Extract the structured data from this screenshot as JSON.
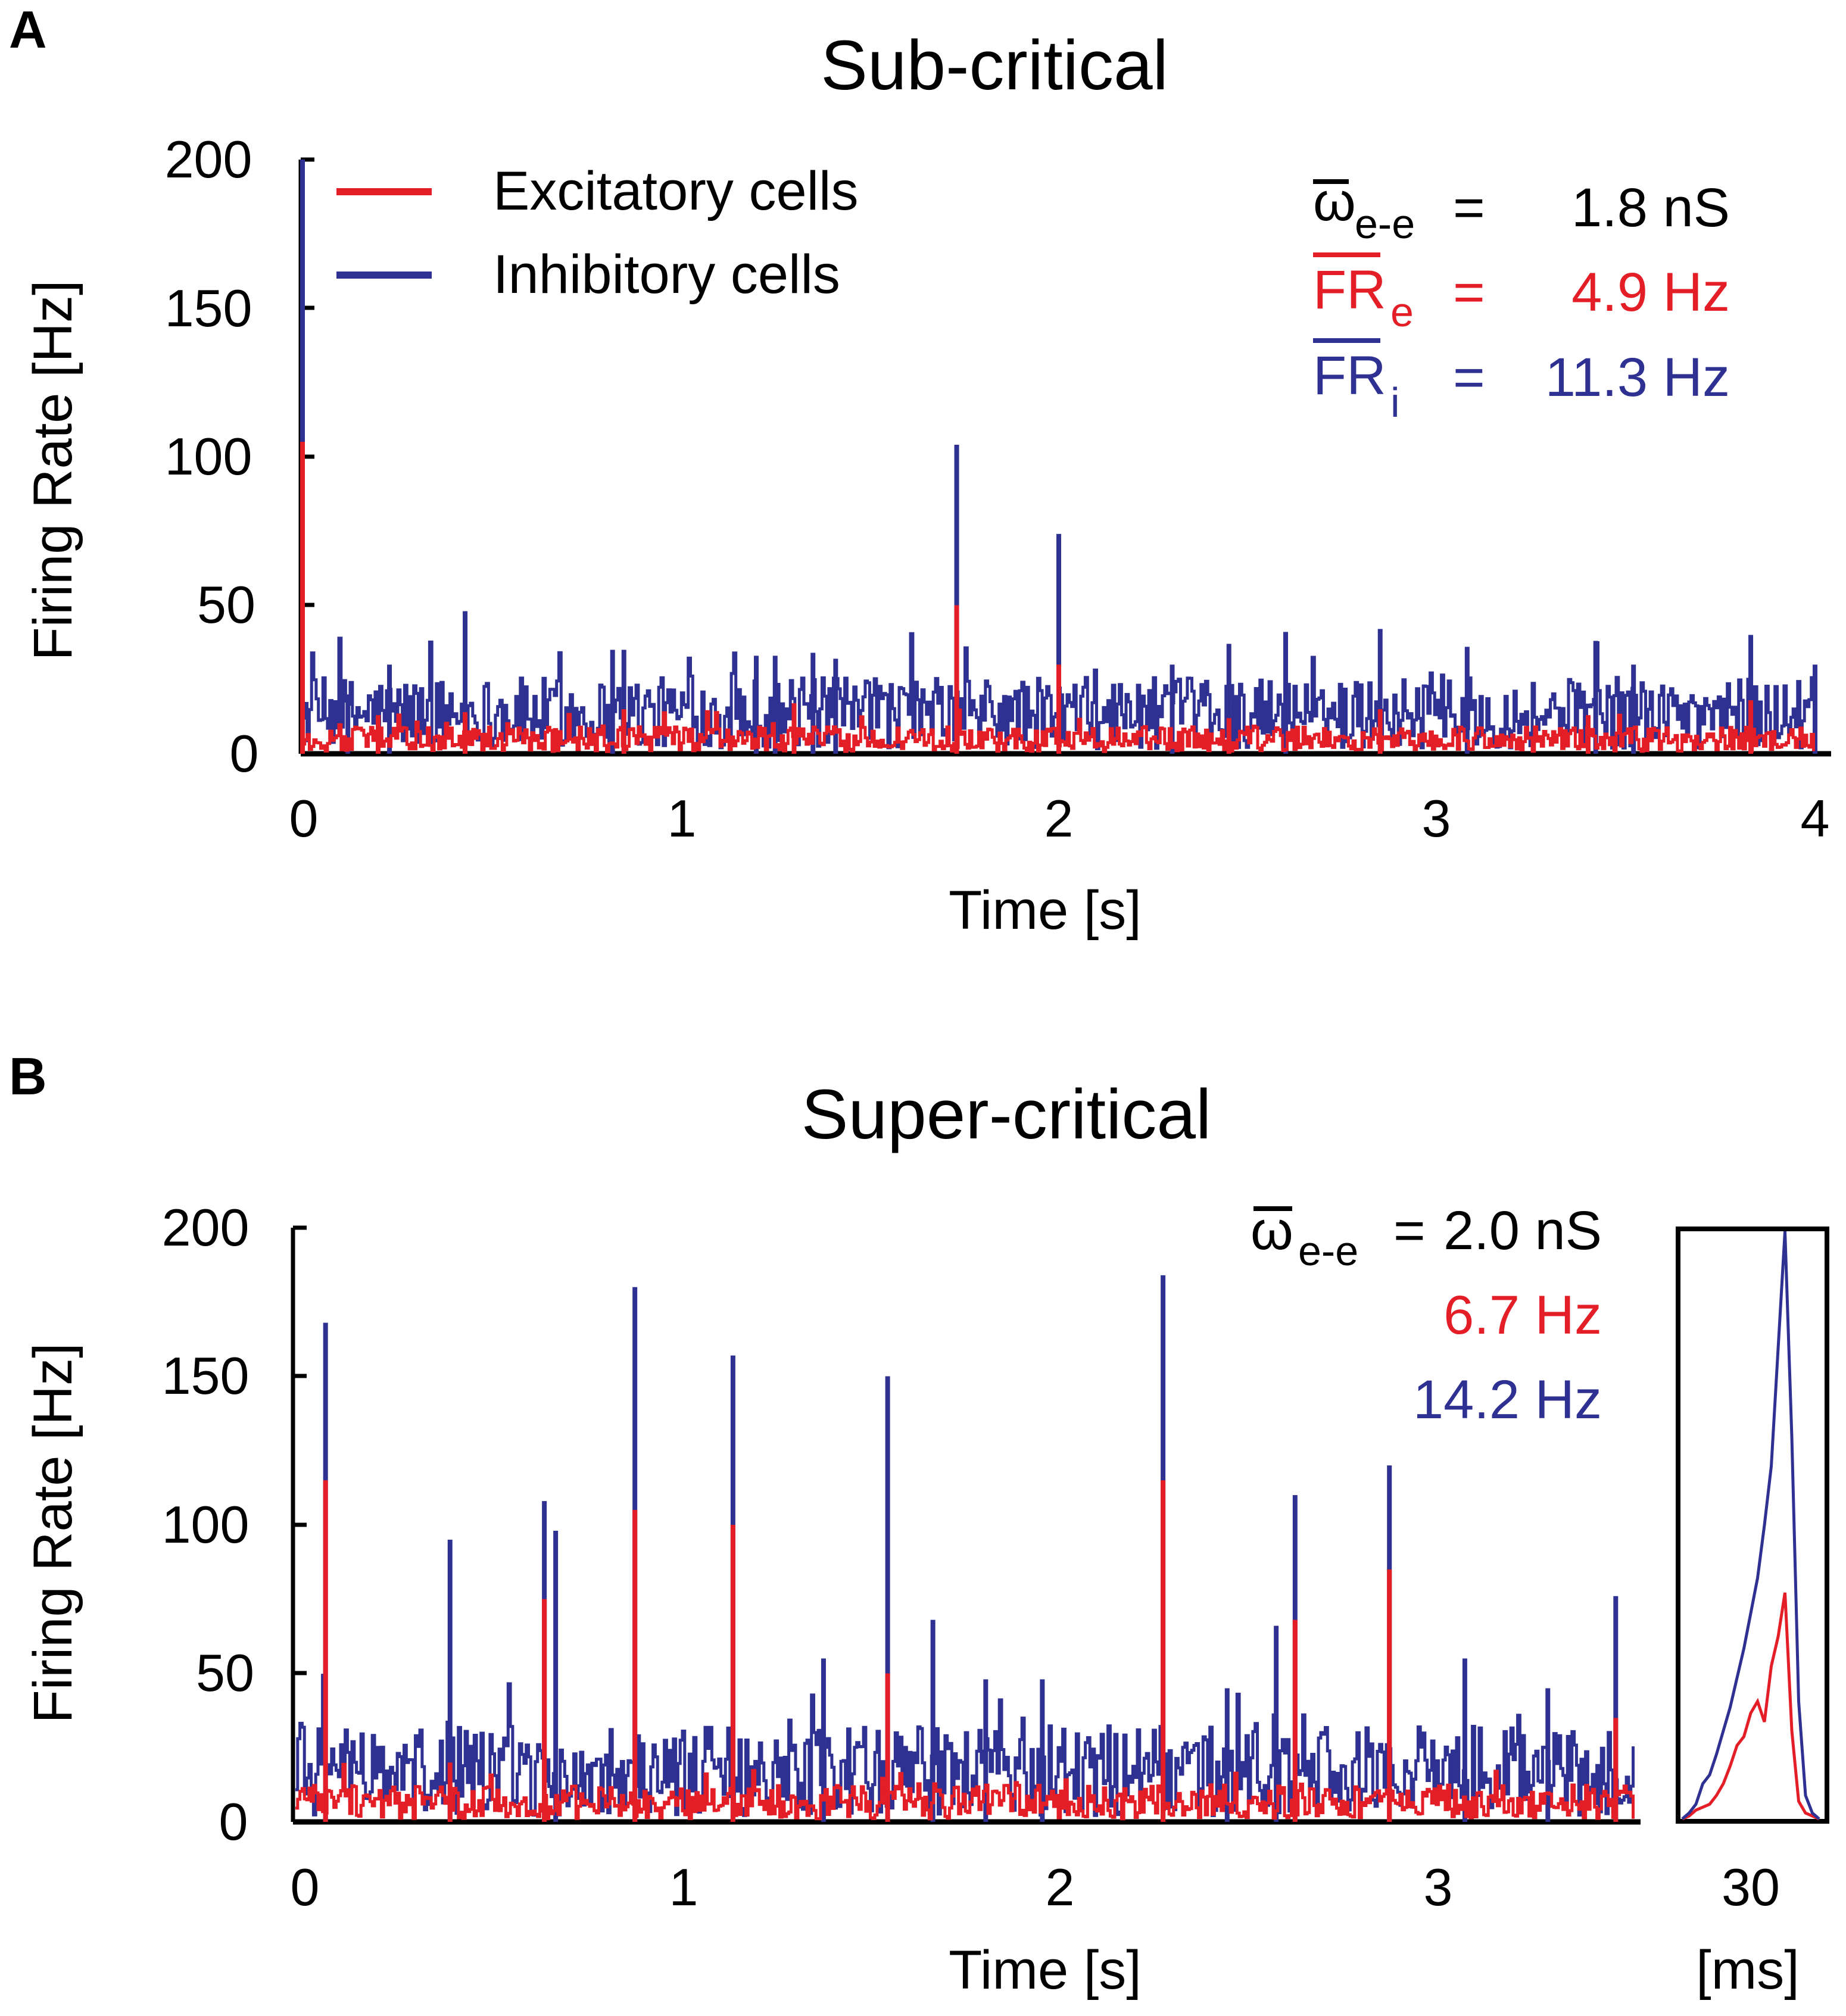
{
  "colors": {
    "excitatory": "#e41e26",
    "inhibitory": "#2e3192",
    "axis": "#000000"
  },
  "chart_data": [
    {
      "id": "A",
      "type": "line",
      "panel_label": "A",
      "title": "Sub-critical",
      "xlabel": "Time [s]",
      "ylabel": "Firing Rate [Hz]",
      "xlim": [
        0,
        4
      ],
      "ylim": [
        0,
        200
      ],
      "xticks": [
        "0",
        "1",
        "2",
        "3",
        "4"
      ],
      "yticks": [
        "0",
        "50",
        "100",
        "150",
        "200"
      ],
      "legend": {
        "placement": "top-left",
        "entries": [
          "Excitatory cells",
          "Inhibitory cells"
        ]
      },
      "params": {
        "weight_symbol": "ω",
        "weight_sub": "e-e",
        "weight_eq": "=",
        "weight_value": "1.8 nS",
        "fr_e_symbol": "FR",
        "fr_e_sub": "e",
        "fr_e_eq": "=",
        "fr_e_value": "4.9 Hz",
        "fr_i_symbol": "FR",
        "fr_i_sub": "i",
        "fr_i_eq": "=",
        "fr_i_value": "11.3 Hz"
      },
      "baseline": {
        "excitatory_mean": 4.9,
        "inhibitory_mean": 11.3
      },
      "series": [
        {
          "name": "Excitatory cells",
          "peaks": [
            [
              0.0,
              105
            ],
            [
              0.2,
              13
            ],
            [
              0.43,
              14
            ],
            [
              0.85,
              15
            ],
            [
              1.3,
              17
            ],
            [
              1.73,
              50
            ],
            [
              2.0,
              30
            ],
            [
              2.45,
              12
            ],
            [
              2.85,
              15
            ],
            [
              3.4,
              13
            ],
            [
              3.83,
              18
            ]
          ]
        },
        {
          "name": "Inhibitory cells",
          "peaks": [
            [
              0.0,
              200
            ],
            [
              0.12,
              20
            ],
            [
              0.23,
              30
            ],
            [
              0.43,
              48
            ],
            [
              0.82,
              35
            ],
            [
              0.85,
              35
            ],
            [
              1.2,
              33
            ],
            [
              1.25,
              33
            ],
            [
              1.35,
              34
            ],
            [
              1.41,
              32
            ],
            [
              1.73,
              104
            ],
            [
              2.0,
              74
            ],
            [
              2.3,
              30
            ],
            [
              2.45,
              37
            ],
            [
              2.6,
              41
            ],
            [
              2.85,
              42
            ],
            [
              3.08,
              36
            ],
            [
              3.42,
              38
            ],
            [
              3.52,
              30
            ],
            [
              3.83,
              40
            ],
            [
              4.0,
              30
            ]
          ]
        }
      ]
    },
    {
      "id": "B",
      "type": "line",
      "panel_label": "B",
      "title": "Super-critical",
      "xlabel": "Time [s]",
      "ylabel": "Firing Rate [Hz]",
      "xlim": [
        0,
        3.55
      ],
      "ylim": [
        0,
        200
      ],
      "xticks": [
        "0",
        "1",
        "2",
        "3"
      ],
      "yticks": [
        "0",
        "50",
        "100",
        "150",
        "200"
      ],
      "params": {
        "weight_symbol": "ω",
        "weight_sub": "e-e",
        "weight_eq": "=",
        "weight_value": "2.0 nS",
        "fr_e_value": "6.7 Hz",
        "fr_i_value": "14.2 Hz"
      },
      "baseline": {
        "excitatory_mean": 6.7,
        "inhibitory_mean": 14.2
      },
      "series": [
        {
          "name": "Excitatory cells",
          "peaks": [
            [
              0.08,
              115
            ],
            [
              0.41,
              20
            ],
            [
              0.66,
              75
            ],
            [
              0.9,
              105
            ],
            [
              1.16,
              100
            ],
            [
              1.57,
              50
            ],
            [
              2.3,
              115
            ],
            [
              2.65,
              68
            ],
            [
              2.9,
              85
            ],
            [
              3.5,
              35
            ]
          ]
        },
        {
          "name": "Inhibitory cells",
          "peaks": [
            [
              0.08,
              168
            ],
            [
              0.41,
              95
            ],
            [
              0.66,
              108
            ],
            [
              0.69,
              98
            ],
            [
              0.9,
              180
            ],
            [
              1.16,
              157
            ],
            [
              1.4,
              55
            ],
            [
              1.57,
              150
            ],
            [
              1.69,
              68
            ],
            [
              1.83,
              48
            ],
            [
              1.98,
              48
            ],
            [
              2.3,
              184
            ],
            [
              2.47,
              45
            ],
            [
              2.6,
              66
            ],
            [
              2.65,
              110
            ],
            [
              2.9,
              120
            ],
            [
              3.1,
              55
            ],
            [
              3.32,
              45
            ],
            [
              3.5,
              76
            ]
          ]
        }
      ]
    },
    {
      "id": "B-inset",
      "type": "line",
      "xlabel": "[ms]",
      "xticks": [
        "30"
      ],
      "ylim": [
        0,
        200
      ],
      "x": [
        0,
        2,
        4,
        6,
        8,
        10,
        12,
        14,
        16,
        18,
        20,
        22,
        24,
        26,
        28,
        30,
        32,
        34,
        36,
        38,
        40
      ],
      "series": [
        {
          "name": "Excitatory cells",
          "values": [
            0,
            1,
            3,
            4,
            5,
            8,
            12,
            18,
            25,
            28,
            36,
            40,
            33,
            52,
            62,
            77,
            30,
            6,
            2,
            1,
            0
          ]
        },
        {
          "name": "Inhibitory cells",
          "values": [
            0,
            2,
            5,
            12,
            15,
            22,
            30,
            38,
            48,
            58,
            70,
            82,
            100,
            120,
            160,
            200,
            130,
            40,
            8,
            2,
            0
          ]
        }
      ]
    }
  ]
}
